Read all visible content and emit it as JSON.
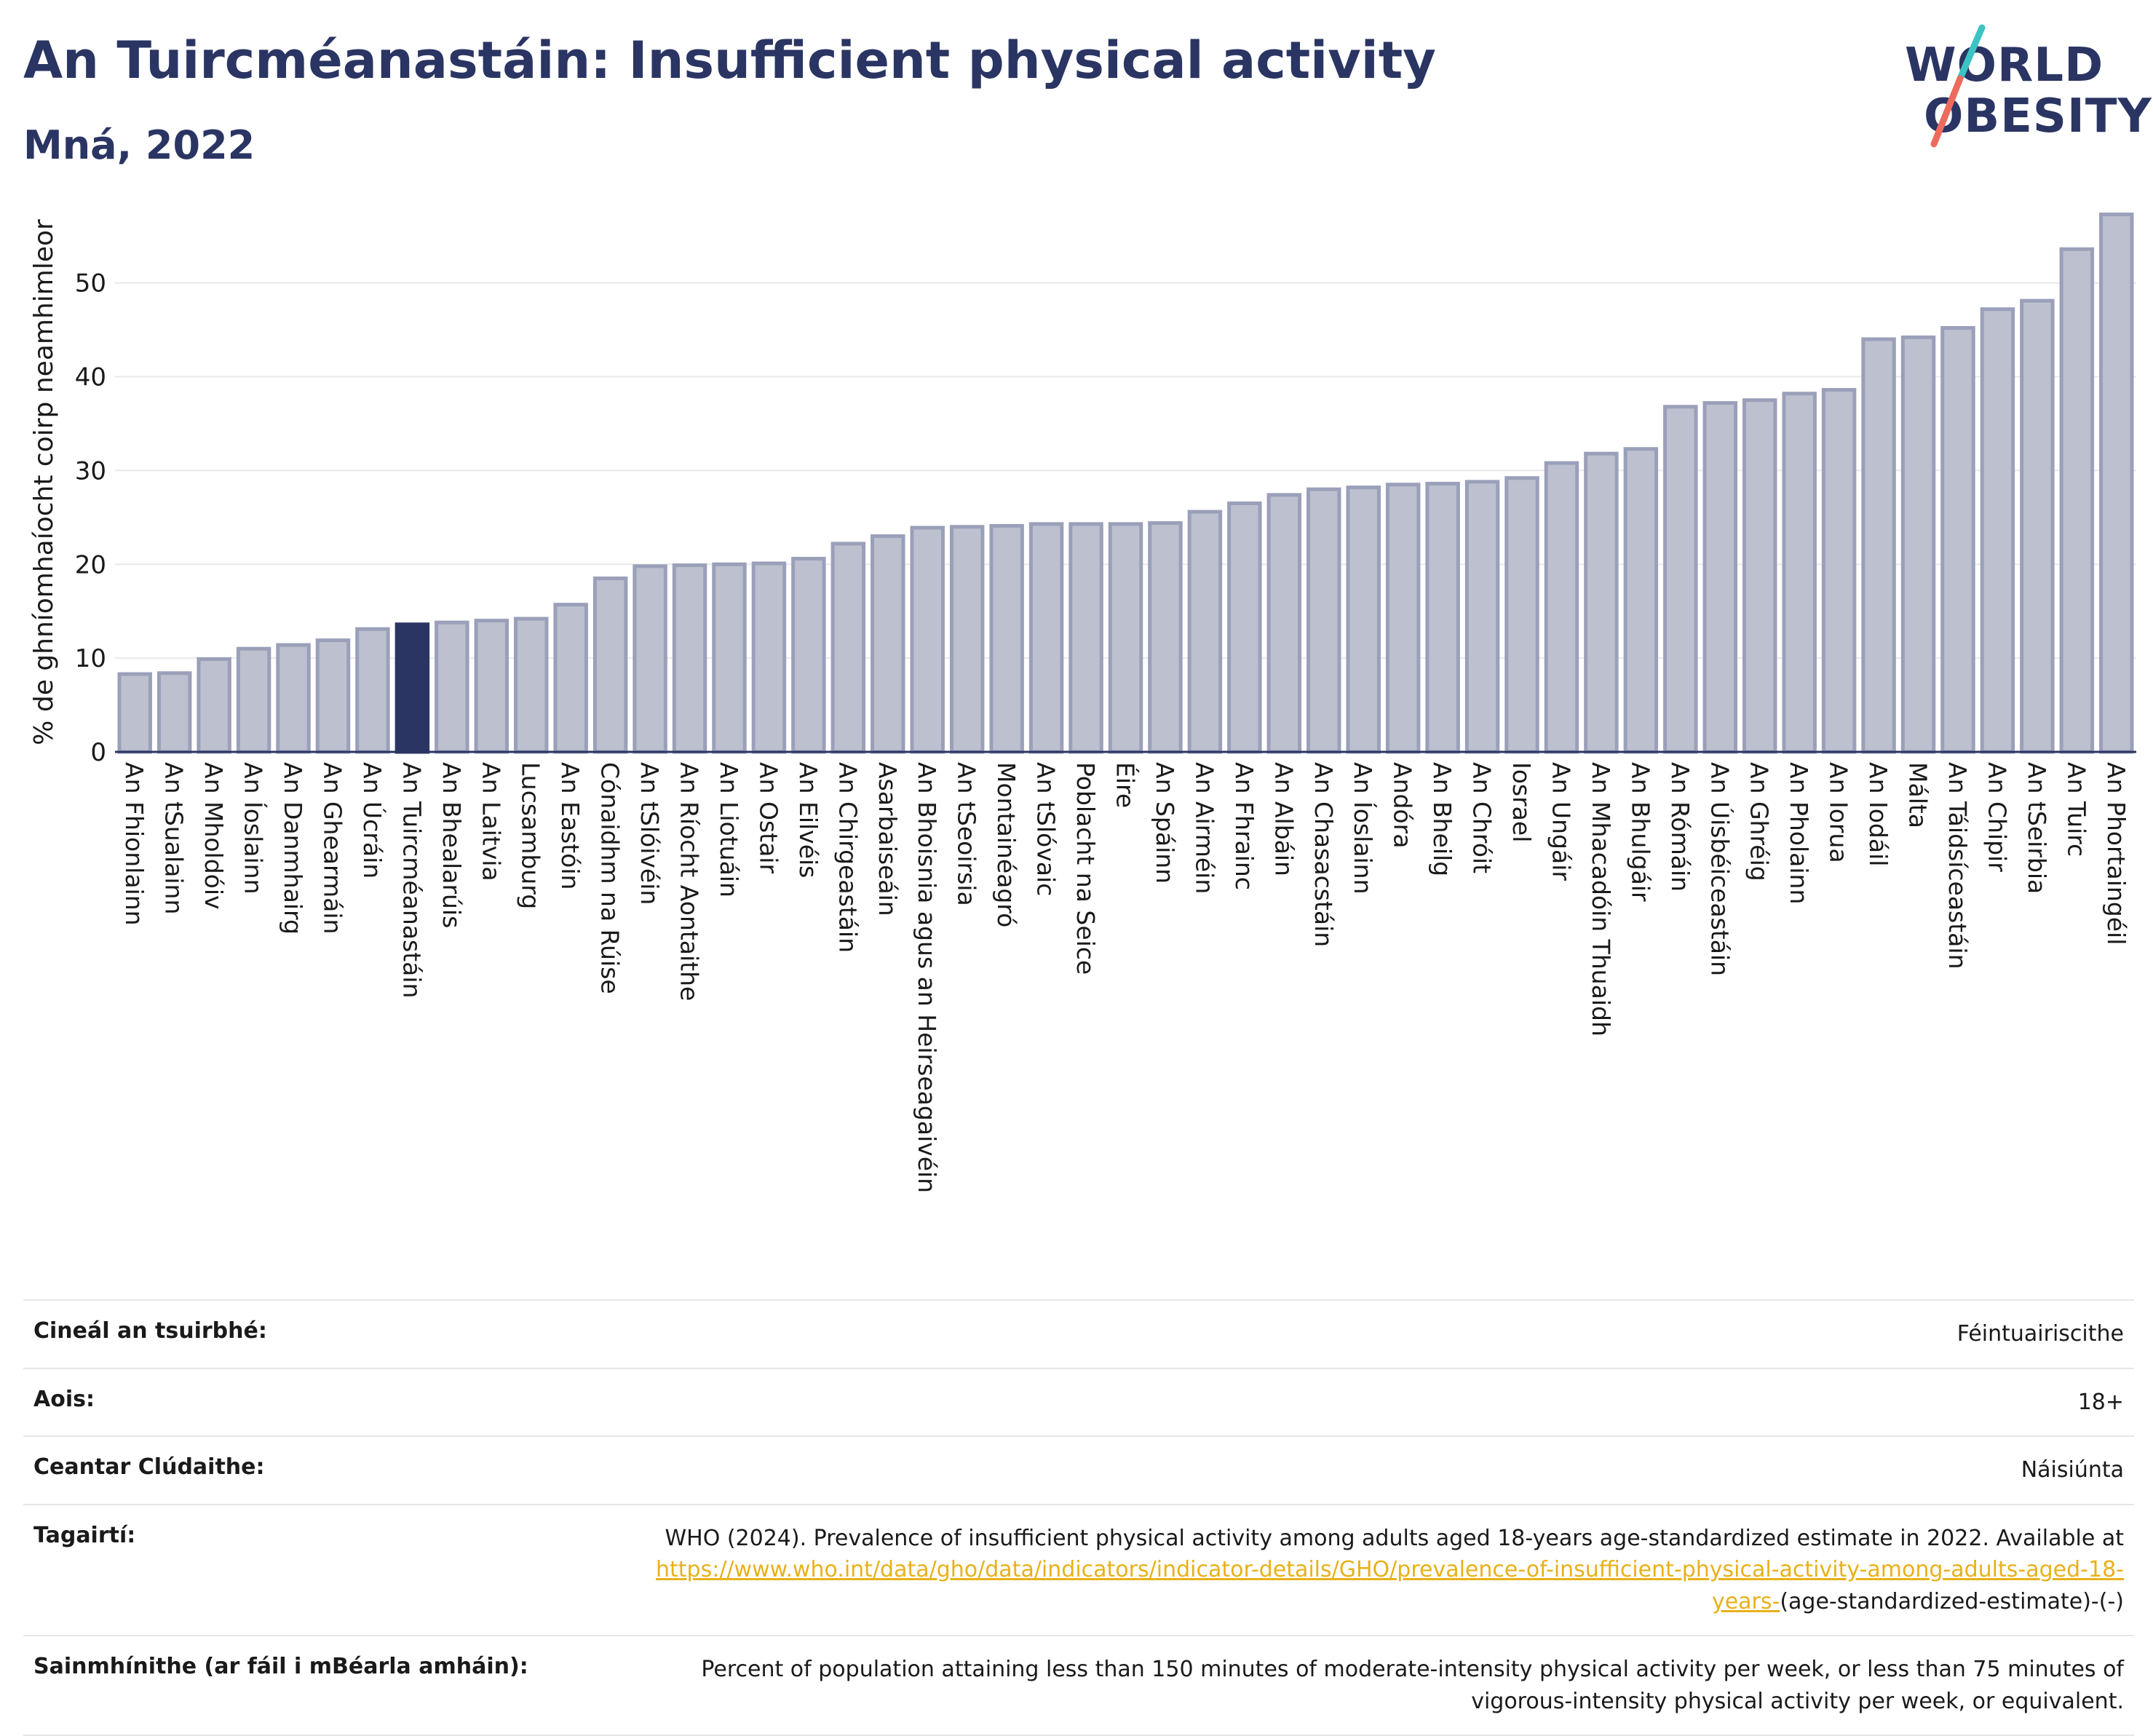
{
  "header": {
    "title": "An Tuircméanastáin: Insufficient physical activity",
    "subtitle": "Mná, 2022",
    "logo_line1": "WORLD",
    "logo_line2": "OBESITY"
  },
  "colors": {
    "text": "#2a3563",
    "bar": "#bcc0cf",
    "bar_stroke": "#9aa0b9",
    "highlight": "#2a3563",
    "link": "#e8b11a",
    "logo_slash_top": "#3cc3c3",
    "logo_slash_bottom": "#ec6b5d"
  },
  "chart_data": {
    "type": "bar",
    "ylabel": "% de ghníomhaíocht coirp neamhimleor",
    "xlabel": "",
    "ylim": [
      0,
      57.5
    ],
    "yticks": [
      0,
      10,
      20,
      30,
      40,
      50
    ],
    "grid": true,
    "highlight": "An Tuircméanastáin",
    "categories": [
      "An Fhionlainn",
      "An tSualainn",
      "An Mholdóiv",
      "An Íoslainn",
      "An Danmhairg",
      "An Ghearmáin",
      "An Úcráin",
      "An Tuircméanastáin",
      "An Bhealarúis",
      "An Laitvia",
      "Lucsamburg",
      "An Eastóin",
      "Cónaidhm na Rúise",
      "An tSlóivéin",
      "An Ríocht Aontaithe",
      "An Liotuáin",
      "An Ostair",
      "An Eilvéis",
      "An Chirgeastáin",
      "Asarbaiseáin",
      "An Bhoisnia agus an Heirseagaivéin",
      "An tSeoirsia",
      "Montainéagró",
      "An tSlóvaic",
      "Poblacht na Seice",
      "Éire",
      "An Spáinn",
      "An Airméin",
      "An Fhrainc",
      "An Albáin",
      "An Chasacstáin",
      "An Íoslainn",
      "Andóra",
      "An Bheilg",
      "An Chróit",
      "Iosrael",
      "An Ungáir",
      "An Mhacadóin Thuaidh",
      "An Bhulgáir",
      "An Rómáin",
      "An Úisbéiceastáin",
      "An Ghréig",
      "An Pholainn",
      "An Iorua",
      "An Iodáil",
      "Málta",
      "An Táidsíceastáin",
      "An Chipir",
      "An tSeirbia",
      "An Tuirc",
      "An Phortaingéil"
    ],
    "values": [
      8.3,
      8.4,
      9.9,
      11.0,
      11.4,
      11.9,
      13.1,
      13.6,
      13.8,
      14.0,
      14.2,
      15.7,
      18.5,
      19.8,
      19.9,
      20.0,
      20.1,
      20.6,
      22.2,
      23.0,
      23.9,
      24.0,
      24.1,
      24.3,
      24.3,
      24.3,
      24.4,
      25.6,
      26.5,
      27.4,
      28.0,
      28.2,
      28.5,
      28.6,
      28.8,
      29.2,
      30.8,
      31.8,
      32.3,
      36.8,
      37.2,
      37.5,
      38.2,
      38.6,
      44.0,
      44.2,
      45.2,
      47.2,
      48.1,
      53.6,
      57.3
    ]
  },
  "info": {
    "survey_label": "Cineál an tsuirbhé:",
    "survey_value": "Féintuairiscithe",
    "age_label": "Aois:",
    "age_value": "18+",
    "area_label": "Ceantar Clúdaithe:",
    "area_value": "Náisiúnta",
    "refs_label": "Tagairtí:",
    "refs_text": "WHO (2024). Prevalence of insufficient physical activity among adults aged 18-years age-standardized estimate in 2022. Available at",
    "refs_link": "https://www.who.int/data/gho/data/indicators/indicator-details/GHO/prevalence-of-insufficient-physical-activity-among-adults-aged-18-years-",
    "refs_suffix": "(age-standardized-estimate)-(-)",
    "defs_label": "Sainmhínithe (ar fáil i mBéarla amháin):",
    "defs_value": "Percent of population attaining less than 150 minutes of moderate-intensity physical activity per week, or less than 75 minutes of vigorous-intensity physical activity per week, or equivalent."
  }
}
